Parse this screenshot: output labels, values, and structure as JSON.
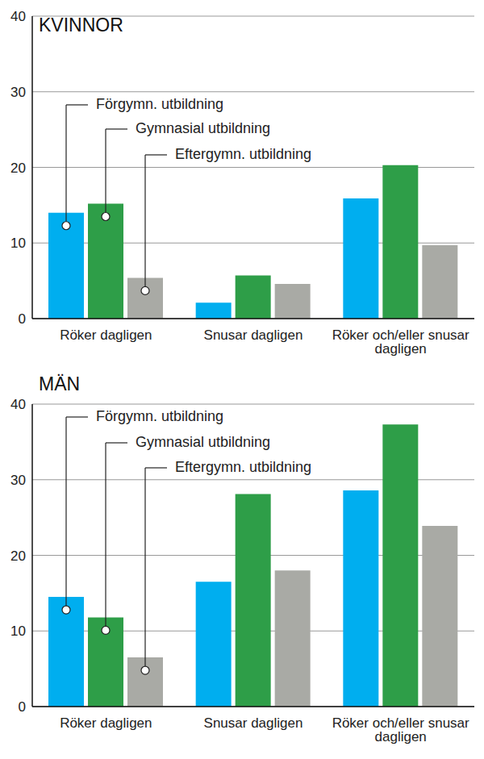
{
  "chart_data": [
    {
      "type": "bar",
      "title": "KVINNOR",
      "categories": [
        "Röker dagligen",
        "Snusar dagligen",
        "Röker och/eller snusar dagligen"
      ],
      "series": [
        {
          "name": "Förgymn. utbildning",
          "color": "#00aeef",
          "values": [
            14,
            2.1,
            15.9
          ]
        },
        {
          "name": "Gymnasial utbildning",
          "color": "#2e9e48",
          "values": [
            15.2,
            5.7,
            20.3
          ]
        },
        {
          "name": "Eftergymn. utbildning",
          "color": "#a9aaa5",
          "values": [
            5.4,
            4.6,
            9.7
          ]
        }
      ],
      "ylim": [
        0,
        40
      ],
      "yticks": [
        0,
        10,
        20,
        30,
        40
      ],
      "grid": true
    },
    {
      "type": "bar",
      "title": "MÄN",
      "categories": [
        "Röker dagligen",
        "Snusar dagligen",
        "Röker och/eller snusar dagligen"
      ],
      "series": [
        {
          "name": "Förgymn. utbildning",
          "color": "#00aeef",
          "values": [
            14.5,
            16.5,
            28.6
          ]
        },
        {
          "name": "Gymnasial utbildning",
          "color": "#2e9e48",
          "values": [
            11.8,
            28.1,
            37.3
          ]
        },
        {
          "name": "Eftergymn. utbildning",
          "color": "#a9aaa5",
          "values": [
            6.5,
            18,
            23.9
          ]
        }
      ],
      "ylim": [
        0,
        40
      ],
      "yticks": [
        0,
        10,
        20,
        30,
        40
      ],
      "grid": true
    }
  ]
}
